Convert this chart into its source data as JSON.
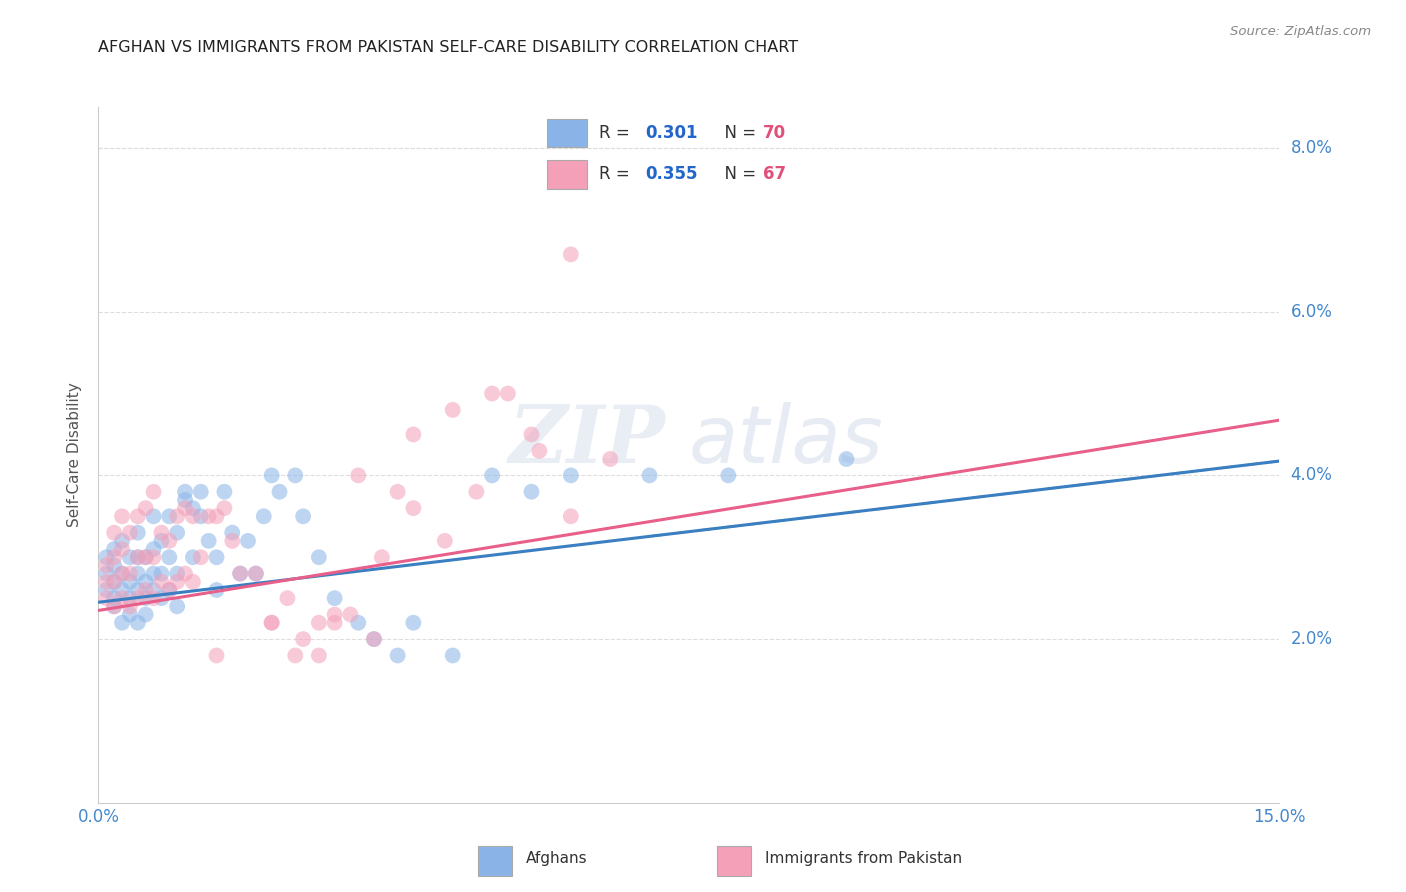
{
  "title": "AFGHAN VS IMMIGRANTS FROM PAKISTAN SELF-CARE DISABILITY CORRELATION CHART",
  "source": "Source: ZipAtlas.com",
  "ylabel": "Self-Care Disability",
  "xlim": [
    0.0,
    0.15
  ],
  "ylim": [
    0.0,
    0.085
  ],
  "xticks": [
    0.0,
    0.03,
    0.06,
    0.09,
    0.12,
    0.15
  ],
  "yticks": [
    0.02,
    0.04,
    0.06,
    0.08
  ],
  "xtick_labels": [
    "0.0%",
    "",
    "",
    "",
    "",
    "15.0%"
  ],
  "ytick_labels_right": [
    "2.0%",
    "4.0%",
    "6.0%",
    "8.0%"
  ],
  "legend_r1": "0.301",
  "legend_n1": "70",
  "legend_r2": "0.355",
  "legend_n2": "67",
  "color_blue": "#8ab4e8",
  "color_pink": "#f4a0b8",
  "trend_blue": "#3a7fc1",
  "trend_pink": "#e85f8a",
  "trend_dashed": "#aaaaaa",
  "watermark_zip": "ZIP",
  "watermark_atlas": "atlas",
  "afghans_x": [
    0.001,
    0.001,
    0.001,
    0.002,
    0.002,
    0.002,
    0.002,
    0.002,
    0.003,
    0.003,
    0.003,
    0.003,
    0.004,
    0.004,
    0.004,
    0.004,
    0.005,
    0.005,
    0.005,
    0.005,
    0.005,
    0.006,
    0.006,
    0.006,
    0.006,
    0.007,
    0.007,
    0.007,
    0.007,
    0.008,
    0.008,
    0.008,
    0.009,
    0.009,
    0.009,
    0.01,
    0.01,
    0.01,
    0.011,
    0.011,
    0.012,
    0.012,
    0.013,
    0.013,
    0.014,
    0.015,
    0.015,
    0.016,
    0.017,
    0.018,
    0.019,
    0.02,
    0.021,
    0.022,
    0.023,
    0.025,
    0.026,
    0.028,
    0.03,
    0.033,
    0.035,
    0.038,
    0.04,
    0.045,
    0.05,
    0.055,
    0.06,
    0.07,
    0.08,
    0.095
  ],
  "afghans_y": [
    0.028,
    0.026,
    0.03,
    0.025,
    0.027,
    0.029,
    0.031,
    0.024,
    0.026,
    0.028,
    0.032,
    0.022,
    0.025,
    0.027,
    0.03,
    0.023,
    0.026,
    0.028,
    0.03,
    0.033,
    0.022,
    0.025,
    0.027,
    0.03,
    0.023,
    0.026,
    0.028,
    0.031,
    0.035,
    0.025,
    0.028,
    0.032,
    0.026,
    0.03,
    0.035,
    0.024,
    0.028,
    0.033,
    0.037,
    0.038,
    0.03,
    0.036,
    0.035,
    0.038,
    0.032,
    0.026,
    0.03,
    0.038,
    0.033,
    0.028,
    0.032,
    0.028,
    0.035,
    0.04,
    0.038,
    0.04,
    0.035,
    0.03,
    0.025,
    0.022,
    0.02,
    0.018,
    0.022,
    0.018,
    0.04,
    0.038,
    0.04,
    0.04,
    0.04,
    0.042
  ],
  "pakistan_x": [
    0.001,
    0.001,
    0.001,
    0.002,
    0.002,
    0.002,
    0.002,
    0.003,
    0.003,
    0.003,
    0.003,
    0.004,
    0.004,
    0.004,
    0.005,
    0.005,
    0.005,
    0.006,
    0.006,
    0.006,
    0.007,
    0.007,
    0.007,
    0.008,
    0.008,
    0.009,
    0.009,
    0.01,
    0.01,
    0.011,
    0.011,
    0.012,
    0.012,
    0.013,
    0.014,
    0.015,
    0.016,
    0.017,
    0.018,
    0.02,
    0.022,
    0.024,
    0.026,
    0.028,
    0.03,
    0.033,
    0.036,
    0.04,
    0.044,
    0.048,
    0.052,
    0.056,
    0.06,
    0.065,
    0.06,
    0.05,
    0.04,
    0.03,
    0.022,
    0.015,
    0.032,
    0.025,
    0.035,
    0.045,
    0.038,
    0.028,
    0.055
  ],
  "pakistan_y": [
    0.027,
    0.025,
    0.029,
    0.024,
    0.027,
    0.03,
    0.033,
    0.025,
    0.028,
    0.031,
    0.035,
    0.024,
    0.028,
    0.033,
    0.025,
    0.03,
    0.035,
    0.026,
    0.03,
    0.036,
    0.025,
    0.03,
    0.038,
    0.027,
    0.033,
    0.026,
    0.032,
    0.027,
    0.035,
    0.028,
    0.036,
    0.027,
    0.035,
    0.03,
    0.035,
    0.035,
    0.036,
    0.032,
    0.028,
    0.028,
    0.022,
    0.025,
    0.02,
    0.022,
    0.022,
    0.04,
    0.03,
    0.036,
    0.032,
    0.038,
    0.05,
    0.043,
    0.035,
    0.042,
    0.067,
    0.05,
    0.045,
    0.023,
    0.022,
    0.018,
    0.023,
    0.018,
    0.02,
    0.048,
    0.038,
    0.018,
    0.045
  ],
  "trend_blue_intercept": 0.0245,
  "trend_blue_slope": 0.115,
  "trend_pink_intercept": 0.0235,
  "trend_pink_slope": 0.155
}
